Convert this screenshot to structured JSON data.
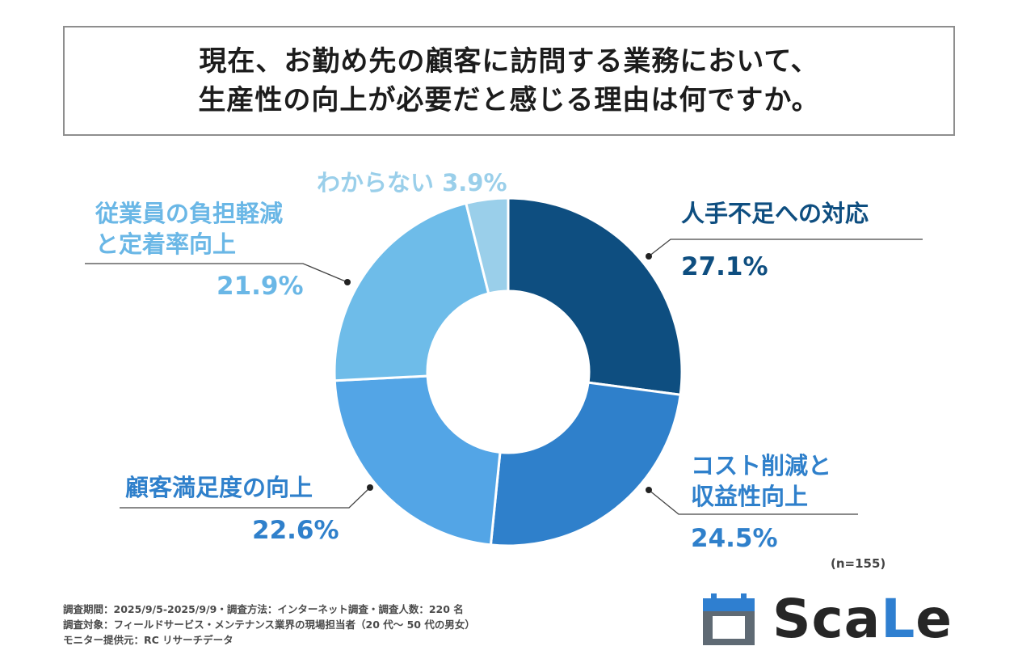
{
  "title": {
    "line1": "現在、お勤め先の顧客に訪問する業務において、",
    "line2": "生産性の向上が必要だと感じる理由は何ですか。"
  },
  "chart_data": {
    "type": "pie",
    "donut": true,
    "slices": [
      {
        "label": "人手不足への対応",
        "value": 27.1,
        "value_label": "27.1%",
        "color": "#0e4e80"
      },
      {
        "label": "コスト削減と収益性向上",
        "value": 24.5,
        "value_label": "24.5%",
        "color": "#2f80cb"
      },
      {
        "label": "顧客満足度の向上",
        "value": 22.6,
        "value_label": "22.6%",
        "color": "#53a5e6"
      },
      {
        "label": "従業員の負担軽減と定着率向上",
        "value": 21.9,
        "value_label": "21.9%",
        "color": "#6ebce9"
      },
      {
        "label": "わからない",
        "value": 3.9,
        "value_label": "3.9%",
        "color": "#9acfea"
      }
    ]
  },
  "labels": {
    "s0_name": "人手不足への対応",
    "s0_pct": "27.1%",
    "s1_name_1": "コスト削減と",
    "s1_name_2": "収益性向上",
    "s1_pct": "24.5%",
    "s2_name": "顧客満足度の向上",
    "s2_pct": "22.6%",
    "s3_name_1": "従業員の負担軽減",
    "s3_name_2": "と定着率向上",
    "s3_pct": "21.9%",
    "s4_full": "わからない 3.9%"
  },
  "sample_note": "(n=155)",
  "footer": {
    "line1": "調査期間：2025/9/5-2025/9/9・調査方法：インターネット調査・調査人数：220 名",
    "line2": "調査対象：フィールドサービス・メンテナンス業界の現場担当者（20 代～ 50 代の男女）",
    "line3": "モニター提供元：RC リサーチデータ"
  },
  "logo": {
    "text_a": "Sca",
    "text_b": "L",
    "text_c": "e",
    "icon": "calendar-icon"
  }
}
